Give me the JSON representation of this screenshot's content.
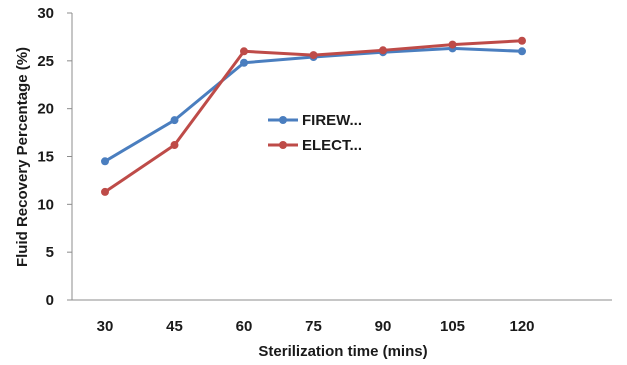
{
  "chart_data": {
    "type": "line",
    "title": "",
    "xlabel": "Sterilization time (mins)",
    "ylabel": "Fluid Recovery Percentage (%)",
    "categories": [
      "30",
      "45",
      "60",
      "75",
      "90",
      "105",
      "120"
    ],
    "ylim": [
      0,
      30
    ],
    "yticks": [
      0,
      5,
      10,
      15,
      20,
      25,
      30
    ],
    "grid": false,
    "legend_position": "center",
    "series": [
      {
        "name": "FIREW...",
        "color": "#4a7ebf",
        "values": [
          14.5,
          18.8,
          24.8,
          25.4,
          25.9,
          26.3,
          26.0
        ]
      },
      {
        "name": "ELECT...",
        "color": "#be4b48",
        "values": [
          11.3,
          16.2,
          26.0,
          25.6,
          26.1,
          26.7,
          27.1
        ]
      }
    ]
  }
}
